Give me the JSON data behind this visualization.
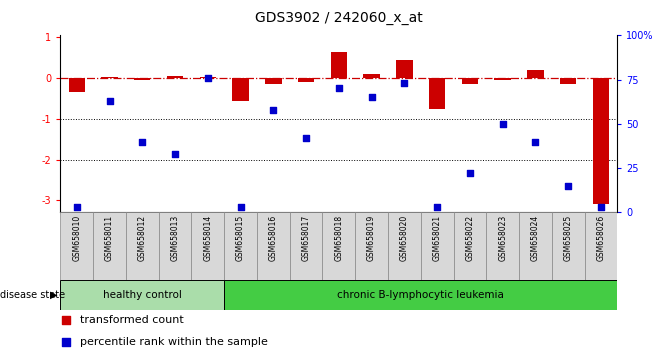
{
  "title": "GDS3902 / 242060_x_at",
  "samples": [
    "GSM658010",
    "GSM658011",
    "GSM658012",
    "GSM658013",
    "GSM658014",
    "GSM658015",
    "GSM658016",
    "GSM658017",
    "GSM658018",
    "GSM658019",
    "GSM658020",
    "GSM658021",
    "GSM658022",
    "GSM658023",
    "GSM658024",
    "GSM658025",
    "GSM658026"
  ],
  "transformed_count": [
    -0.35,
    0.02,
    -0.05,
    0.05,
    0.02,
    -0.55,
    -0.15,
    -0.1,
    0.65,
    0.1,
    0.45,
    -0.75,
    -0.15,
    -0.05,
    0.2,
    -0.15,
    -3.1
  ],
  "percentile_rank": [
    3,
    63,
    40,
    33,
    76,
    3,
    58,
    42,
    70,
    65,
    73,
    3,
    22,
    50,
    40,
    15,
    3
  ],
  "bar_color": "#cc0000",
  "dot_color": "#0000cc",
  "dashed_line_color": "#cc0000",
  "healthy_control_count": 5,
  "group_labels": [
    "healthy control",
    "chronic B-lymphocytic leukemia"
  ],
  "healthy_color": "#aaddaa",
  "leukemia_color": "#44cc44",
  "disease_state_label": "disease state",
  "legend_items": [
    "transformed count",
    "percentile rank within the sample"
  ],
  "ylim": [
    -3.3,
    1.05
  ],
  "right_axis_ticks": [
    0,
    25,
    50,
    75,
    100
  ],
  "right_axis_labels": [
    "0",
    "25",
    "50",
    "75",
    "100%"
  ],
  "left_axis_ticks": [
    -3,
    -2,
    -1,
    0,
    1
  ],
  "dotted_lines": [
    -1,
    -2
  ],
  "background_color": "#ffffff"
}
